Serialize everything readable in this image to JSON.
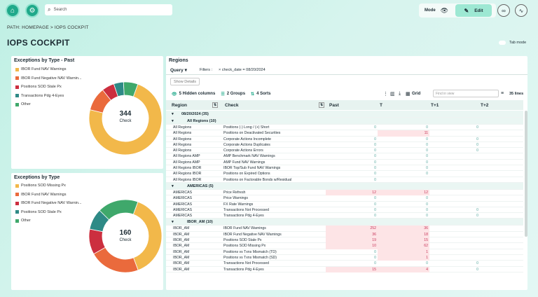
{
  "topbar": {
    "search_placeholder": "Search",
    "mode_label": "Mode",
    "edit_label": "Edit"
  },
  "path": "PATH: HOMEPAGE  >  IOPS COCKPIT",
  "page_title": "IOPS COCKPIT",
  "tab_mode_label": "Tab mode",
  "colors": {
    "accent": "#1fa98a",
    "yellow": "#f2b84a",
    "orange": "#ea6a3c",
    "red": "#cc2f3f",
    "teal": "#2e8a86",
    "green": "#3fa86b"
  },
  "card_past": {
    "title": "Exceptions by Type - Past",
    "legend": [
      {
        "label": "IBOR Fund NAV Warnings",
        "color": "#f2b84a"
      },
      {
        "label": "IBOR Fund Negative NAV Warnin...",
        "color": "#ea6a3c"
      },
      {
        "label": "Positions SOD Stale Px",
        "color": "#cc2f3f"
      },
      {
        "label": "Transactions Pdg 4-Eyes",
        "color": "#2e8a86"
      },
      {
        "label": "Other",
        "color": "#3fa86b"
      }
    ],
    "total": "344",
    "center_label": "Check",
    "chart_data": {
      "type": "pie",
      "values": [
        252,
        36,
        19,
        15,
        22
      ]
    }
  },
  "card_now": {
    "title": "Exceptions by Type",
    "legend": [
      {
        "label": "Positions SOD Missing Px",
        "color": "#f2b84a"
      },
      {
        "label": "IBOR Fund NAV Warnings",
        "color": "#ea6a3c"
      },
      {
        "label": "IBOR Fund Negative NAV Warnin...",
        "color": "#cc2f3f"
      },
      {
        "label": "Positions SOD Stale Px",
        "color": "#2e8a86"
      },
      {
        "label": "Other",
        "color": "#3fa86b"
      }
    ],
    "total": "160",
    "center_label": "Check",
    "chart_data": {
      "type": "pie",
      "values": [
        62,
        36,
        18,
        15,
        29
      ]
    }
  },
  "regions": {
    "title": "Regions",
    "query_label": "Query",
    "filters_label": "Filters :",
    "filter_chip": "× check_date = 08/20/2024",
    "show_details": "Show Details",
    "hidden_columns": "5 Hidden columns",
    "groups": "2 Groups",
    "sorts": "4 Sorts",
    "grid_label": "Grid",
    "find_placeholder": "Find in view",
    "lines": "35 lines",
    "columns": [
      "Region",
      "Check",
      "Past",
      "T",
      "T+1",
      "T+2"
    ],
    "rows": [
      {
        "kind": "group",
        "text": "08/20/2024 (35)"
      },
      {
        "kind": "group",
        "text": "All Regions (10)"
      },
      {
        "kind": "data",
        "region": "All Regions",
        "check": "Positions (-) Long / (+) Short",
        "past": "0",
        "t": "0",
        "t1": "0",
        "hl": false
      },
      {
        "kind": "data",
        "region": "All Regions",
        "check": "Positions on Deactivated Securities",
        "past": "",
        "t": "11",
        "t1": "",
        "hl": true
      },
      {
        "kind": "data",
        "region": "All Regions",
        "check": "Corporate Actions Incomplete",
        "past": "0",
        "t": "0",
        "t1": "0",
        "hl": false
      },
      {
        "kind": "data",
        "region": "All Regions",
        "check": "Corporate Actions Duplicates",
        "past": "0",
        "t": "0",
        "t1": "0",
        "hl": false
      },
      {
        "kind": "data",
        "region": "All Regions",
        "check": "Corporate Actions Errors",
        "past": "0",
        "t": "0",
        "t1": "0",
        "hl": false
      },
      {
        "kind": "data",
        "region": "All Regions AMP",
        "check": "AMP Benchmark NAV Warnings",
        "past": "0",
        "t": "0",
        "t1": "",
        "hl": false
      },
      {
        "kind": "data",
        "region": "All Regions AMP",
        "check": "AMP Fund NAV Warnings",
        "past": "0",
        "t": "0",
        "t1": "",
        "hl": false
      },
      {
        "kind": "data",
        "region": "All Regions IBOR",
        "check": "IBOR Top/Sub Fund NAV Warnings",
        "past": "0",
        "t": "0",
        "t1": "",
        "hl": false
      },
      {
        "kind": "data",
        "region": "All Regions IBOR",
        "check": "Positions on Expired Options",
        "past": "0",
        "t": "0",
        "t1": "",
        "hl": false
      },
      {
        "kind": "data",
        "region": "All Regions IBOR",
        "check": "Positions on Factorable Bonds w/Residual",
        "past": "0",
        "t": "",
        "t1": "",
        "hl": false
      },
      {
        "kind": "group",
        "text": "AMERICAS (5)"
      },
      {
        "kind": "data",
        "region": "AMERICAS",
        "check": "Price Refresh",
        "past": "12",
        "t": "12",
        "t1": "",
        "hl": true
      },
      {
        "kind": "data",
        "region": "AMERICAS",
        "check": "Price Warnings",
        "past": "0",
        "t": "0",
        "t1": "",
        "hl": false
      },
      {
        "kind": "data",
        "region": "AMERICAS",
        "check": "FX Rate Warnings",
        "past": "0",
        "t": "0",
        "t1": "",
        "hl": false
      },
      {
        "kind": "data",
        "region": "AMERICAS",
        "check": "Transactions Not Processed",
        "past": "0",
        "t": "0",
        "t1": "0",
        "hl": false
      },
      {
        "kind": "data",
        "region": "AMERICAS",
        "check": "Transactions Pdg 4-Eyes",
        "past": "0",
        "t": "0",
        "t1": "0",
        "hl": false
      },
      {
        "kind": "group",
        "text": "IBOR_AM (10)"
      },
      {
        "kind": "data",
        "region": "IBOR_AM",
        "check": "IBOR Fund NAV Warnings",
        "past": "252",
        "t": "36",
        "t1": "",
        "hl": true
      },
      {
        "kind": "data",
        "region": "IBOR_AM",
        "check": "IBOR Fund Negative NAV Warnings",
        "past": "36",
        "t": "18",
        "t1": "",
        "hl": true
      },
      {
        "kind": "data",
        "region": "IBOR_AM",
        "check": "Positions SOD Stale Px",
        "past": "19",
        "t": "15",
        "t1": "",
        "hl": true
      },
      {
        "kind": "data",
        "region": "IBOR_AM",
        "check": "Positions SOD Missing Px",
        "past": "10",
        "t": "62",
        "t1": "",
        "hl": true
      },
      {
        "kind": "data",
        "region": "IBOR_AM",
        "check": "Positions vs Txns Mismatch (TD)",
        "past": "0",
        "t": "1",
        "t1": "",
        "hl": true
      },
      {
        "kind": "data",
        "region": "IBOR_AM",
        "check": "Positions vs Txns Mismatch (SD)",
        "past": "0",
        "t": "1",
        "t1": "",
        "hl": true
      },
      {
        "kind": "data",
        "region": "IBOR_AM",
        "check": "Transactions Not Processed",
        "past": "0",
        "t": "0",
        "t1": "0",
        "hl": false
      },
      {
        "kind": "data",
        "region": "IBOR_AM",
        "check": "Transactions Pdg 4-Eyes",
        "past": "15",
        "t": "4",
        "t1": "0",
        "hl": true
      }
    ]
  }
}
